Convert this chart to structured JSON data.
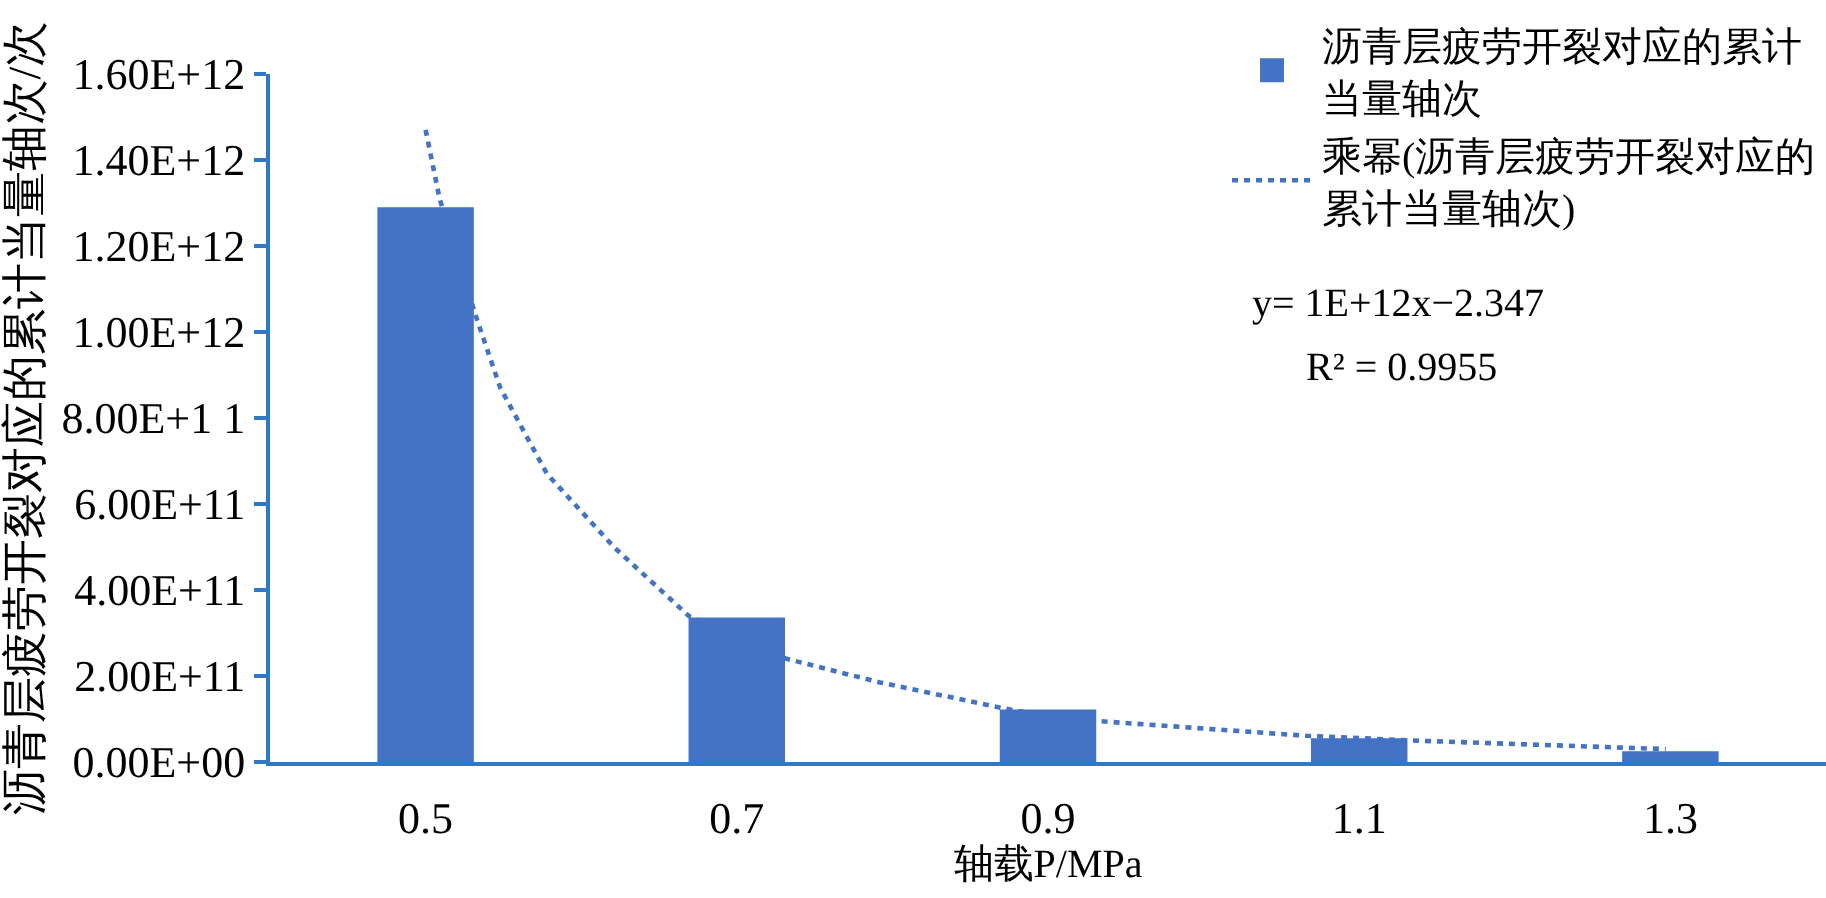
{
  "chart_data": {
    "type": "bar",
    "xlabel": "轴载P/MPa",
    "ylabel": "沥青层疲劳开裂对应的累计当量轴次/次",
    "x": [
      0.5,
      0.7,
      0.9,
      1.1,
      1.3
    ],
    "xlim": [
      0.4,
      1.4
    ],
    "xticks": [
      0.5,
      0.7,
      0.9,
      1.1,
      1.3
    ],
    "ylim": [
      0,
      1600000000000.0
    ],
    "yticks": [
      {
        "value": 0,
        "label": "0.00E+00"
      },
      {
        "value": 200000000000.0,
        "label": "2.00E+11"
      },
      {
        "value": 400000000000.0,
        "label": "4.00E+11"
      },
      {
        "value": 600000000000.0,
        "label": "6.00E+11"
      },
      {
        "value": 800000000000.0,
        "label": "8.00E+1 1"
      },
      {
        "value": 1000000000000.0,
        "label": "1.00E+12"
      },
      {
        "value": 1200000000000.0,
        "label": "1.20E+12"
      },
      {
        "value": 1400000000000.0,
        "label": "1.40E+12"
      },
      {
        "value": 1600000000000.0,
        "label": "1.60E+12"
      }
    ],
    "series": [
      {
        "name": "沥青层疲劳开裂对应的累计当量轴次",
        "color": "#4472c4",
        "values": [
          1290000000000.0,
          336000000000.0,
          122000000000.0,
          55000000000.0,
          25000000000.0
        ]
      },
      {
        "name": "乘幂(沥青层疲劳开裂对应的累计当量轴次)",
        "type": "line",
        "color": "#4472c4",
        "line_style": "dotted",
        "x": [
          0.5,
          0.509,
          0.532,
          0.548,
          0.578,
          0.621,
          0.669,
          0.732,
          0.792,
          0.878,
          0.933,
          1.066,
          1.134,
          1.297
        ],
        "values": [
          1470000000000.0,
          1310000000000.0,
          1040000000000.0,
          870000000000.0,
          670000000000.0,
          500000000000.0,
          340000000000.0,
          240000000000.0,
          185000000000.0,
          120000000000.0,
          95000000000.0,
          61000000000.0,
          50000000000.0,
          30000000000.0
        ]
      }
    ],
    "annotations": [
      "y= 1E+12x−2.347",
      "R² = 0.9955"
    ],
    "legend": "top right"
  }
}
